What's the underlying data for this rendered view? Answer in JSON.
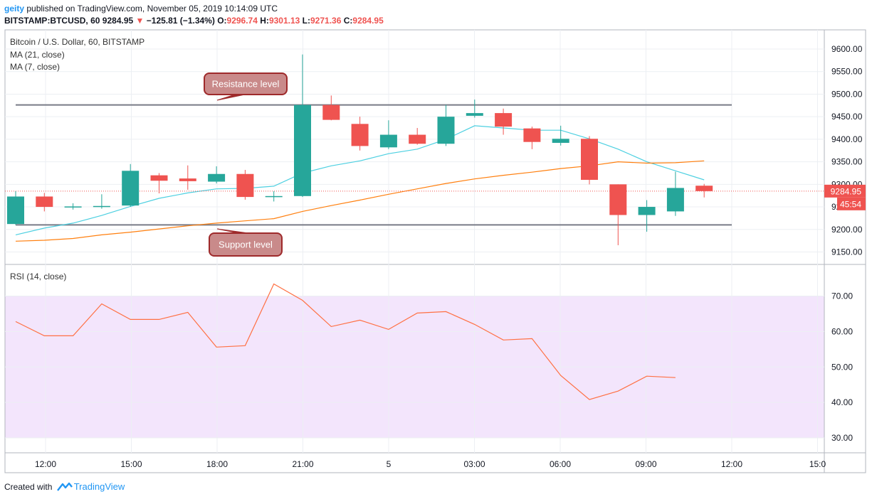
{
  "header": {
    "author": "geity",
    "published_text": "published on TradingView.com, November 05, 2019 10:14:09 UTC",
    "symbol": "BITSTAMP:BTCUSD, 60",
    "last": "9284.95",
    "arrow": "▼",
    "change": "−125.81 (−1.34%)",
    "o_label": "O:",
    "o_value": "9296.74",
    "h_label": "H:",
    "h_value": "9301.13",
    "l_label": "L:",
    "l_value": "9271.36",
    "c_label": "C:",
    "c_value": "9284.95"
  },
  "legend": {
    "title": "Bitcoin / U.S. Dollar, 60, BITSTAMP",
    "ma21": "MA (21, close)",
    "ma7": "MA (7, close)",
    "rsi": "RSI (14, close)"
  },
  "footer": {
    "created_with": "Created with",
    "brand": "TradingView"
  },
  "chart_data": [
    {
      "type": "candlestick",
      "title": "Bitcoin / U.S. Dollar, 60, BITSTAMP",
      "x_ticks": [
        "12:00",
        "15:00",
        "18:00",
        "21:00",
        "5",
        "03:00",
        "06:00",
        "09:00",
        "12:00",
        "15:0"
      ],
      "ylim": [
        9125,
        9640
      ],
      "y_ticks": [
        "9150.00",
        "9200.00",
        "9250.00",
        "9300.00",
        "9350.00",
        "9400.00",
        "9450.00",
        "9500.00",
        "9550.00",
        "9600.00"
      ],
      "y_ticks_obscured": [
        "9250.00",
        "9300.00"
      ],
      "y_ticks_partial": {
        "9250.00": "92",
        "9300.00": "9300.00"
      },
      "grid": true,
      "price_label": "9284.95",
      "countdown_label": "45:54",
      "up_color": "#26a69a",
      "down_color": "#ef5350",
      "candles": [
        {
          "t": "10:00",
          "o": 9212,
          "h": 9285,
          "l": 9210,
          "c": 9273
        },
        {
          "t": "11:00",
          "o": 9273,
          "h": 9281,
          "l": 9240,
          "c": 9250
        },
        {
          "t": "12:00",
          "o": 9250,
          "h": 9258,
          "l": 9244,
          "c": 9251
        },
        {
          "t": "13:00",
          "o": 9251,
          "h": 9278,
          "l": 9246,
          "c": 9252
        },
        {
          "t": "14:00",
          "o": 9253,
          "h": 9345,
          "l": 9250,
          "c": 9330
        },
        {
          "t": "15:00",
          "o": 9320,
          "h": 9325,
          "l": 9280,
          "c": 9308
        },
        {
          "t": "16:00",
          "o": 9313,
          "h": 9342,
          "l": 9288,
          "c": 9307
        },
        {
          "t": "17:00",
          "o": 9306,
          "h": 9340,
          "l": 9302,
          "c": 9323
        },
        {
          "t": "18:00",
          "o": 9323,
          "h": 9332,
          "l": 9266,
          "c": 9272
        },
        {
          "t": "19:00",
          "o": 9272,
          "h": 9285,
          "l": 9262,
          "c": 9274
        },
        {
          "t": "20:00",
          "o": 9274,
          "h": 9588,
          "l": 9272,
          "c": 9476
        },
        {
          "t": "21:00",
          "o": 9476,
          "h": 9497,
          "l": 9442,
          "c": 9443
        },
        {
          "t": "22:00",
          "o": 9434,
          "h": 9450,
          "l": 9375,
          "c": 9385
        },
        {
          "t": "23:00",
          "o": 9382,
          "h": 9442,
          "l": 9378,
          "c": 9410
        },
        {
          "t": "00:00",
          "o": 9410,
          "h": 9425,
          "l": 9388,
          "c": 9390
        },
        {
          "t": "01:00",
          "o": 9390,
          "h": 9476,
          "l": 9385,
          "c": 9450
        },
        {
          "t": "02:00",
          "o": 9452,
          "h": 9488,
          "l": 9448,
          "c": 9458
        },
        {
          "t": "03:00",
          "o": 9458,
          "h": 9468,
          "l": 9410,
          "c": 9428
        },
        {
          "t": "04:00",
          "o": 9424,
          "h": 9428,
          "l": 9378,
          "c": 9394
        },
        {
          "t": "05:00",
          "o": 9392,
          "h": 9430,
          "l": 9386,
          "c": 9401
        },
        {
          "t": "06:00",
          "o": 9401,
          "h": 9407,
          "l": 9300,
          "c": 9310
        },
        {
          "t": "07:00",
          "o": 9300,
          "h": 9300,
          "l": 9165,
          "c": 9232
        },
        {
          "t": "08:00",
          "o": 9232,
          "h": 9265,
          "l": 9195,
          "c": 9250
        },
        {
          "t": "09:00",
          "o": 9240,
          "h": 9328,
          "l": 9230,
          "c": 9292
        },
        {
          "t": "10:00",
          "o": 9297,
          "h": 9301,
          "l": 9271,
          "c": 9285
        }
      ],
      "series": [
        {
          "name": "MA (7, close)",
          "color": "#4dd0e1",
          "x_index": [
            0,
            1,
            2,
            3,
            4,
            5,
            6,
            7,
            8,
            9,
            10,
            11,
            12,
            13,
            14,
            15,
            16,
            17,
            18,
            19,
            20,
            21,
            22,
            23,
            24
          ],
          "values": [
            9188,
            9203,
            9214,
            9231,
            9251,
            9269,
            9281,
            9290,
            9291,
            9296,
            9325,
            9341,
            9352,
            9368,
            9378,
            9400,
            9430,
            9425,
            9420,
            9420,
            9401,
            9378,
            9350,
            9330,
            9310
          ]
        },
        {
          "name": "MA (21, close)",
          "color": "#ff7f0e",
          "x_index": [
            0,
            1,
            2,
            3,
            4,
            5,
            6,
            7,
            8,
            9,
            10,
            11,
            12,
            13,
            14,
            15,
            16,
            17,
            18,
            19,
            20,
            21,
            22,
            23,
            24
          ],
          "values": [
            9174,
            9176,
            9180,
            9188,
            9194,
            9201,
            9208,
            9214,
            9219,
            9224,
            9240,
            9253,
            9265,
            9278,
            9290,
            9302,
            9312,
            9320,
            9327,
            9335,
            9341,
            9350,
            9347,
            9348,
            9352
          ]
        }
      ],
      "annotations": [
        {
          "text": "Resistance level",
          "price": 9476
        },
        {
          "text": "Support level",
          "price": 9210
        }
      ]
    },
    {
      "type": "line",
      "title": "RSI (14, close)",
      "ylim": [
        25,
        76
      ],
      "y_ticks": [
        "30.00",
        "40.00",
        "50.00",
        "60.00",
        "70.00"
      ],
      "band": [
        30,
        70
      ],
      "band_color": "#f3e5fc",
      "series": [
        {
          "name": "RSI (14, close)",
          "color": "#ff7043",
          "x_index": [
            0,
            1,
            2,
            3,
            4,
            5,
            6,
            7,
            8,
            9,
            10,
            11,
            12,
            13,
            14,
            15,
            16,
            17,
            18,
            19,
            20,
            21,
            22,
            23,
            24
          ],
          "values": [
            62.8,
            58.8,
            58.8,
            67.8,
            63.4,
            63.4,
            65.4,
            55.6,
            56.0,
            73.4,
            68.8,
            61.4,
            63.2,
            60.6,
            65.2,
            65.6,
            62.0,
            57.6,
            58.0,
            47.6,
            40.8,
            43.2,
            47.4,
            47.0,
            null
          ]
        }
      ]
    }
  ]
}
